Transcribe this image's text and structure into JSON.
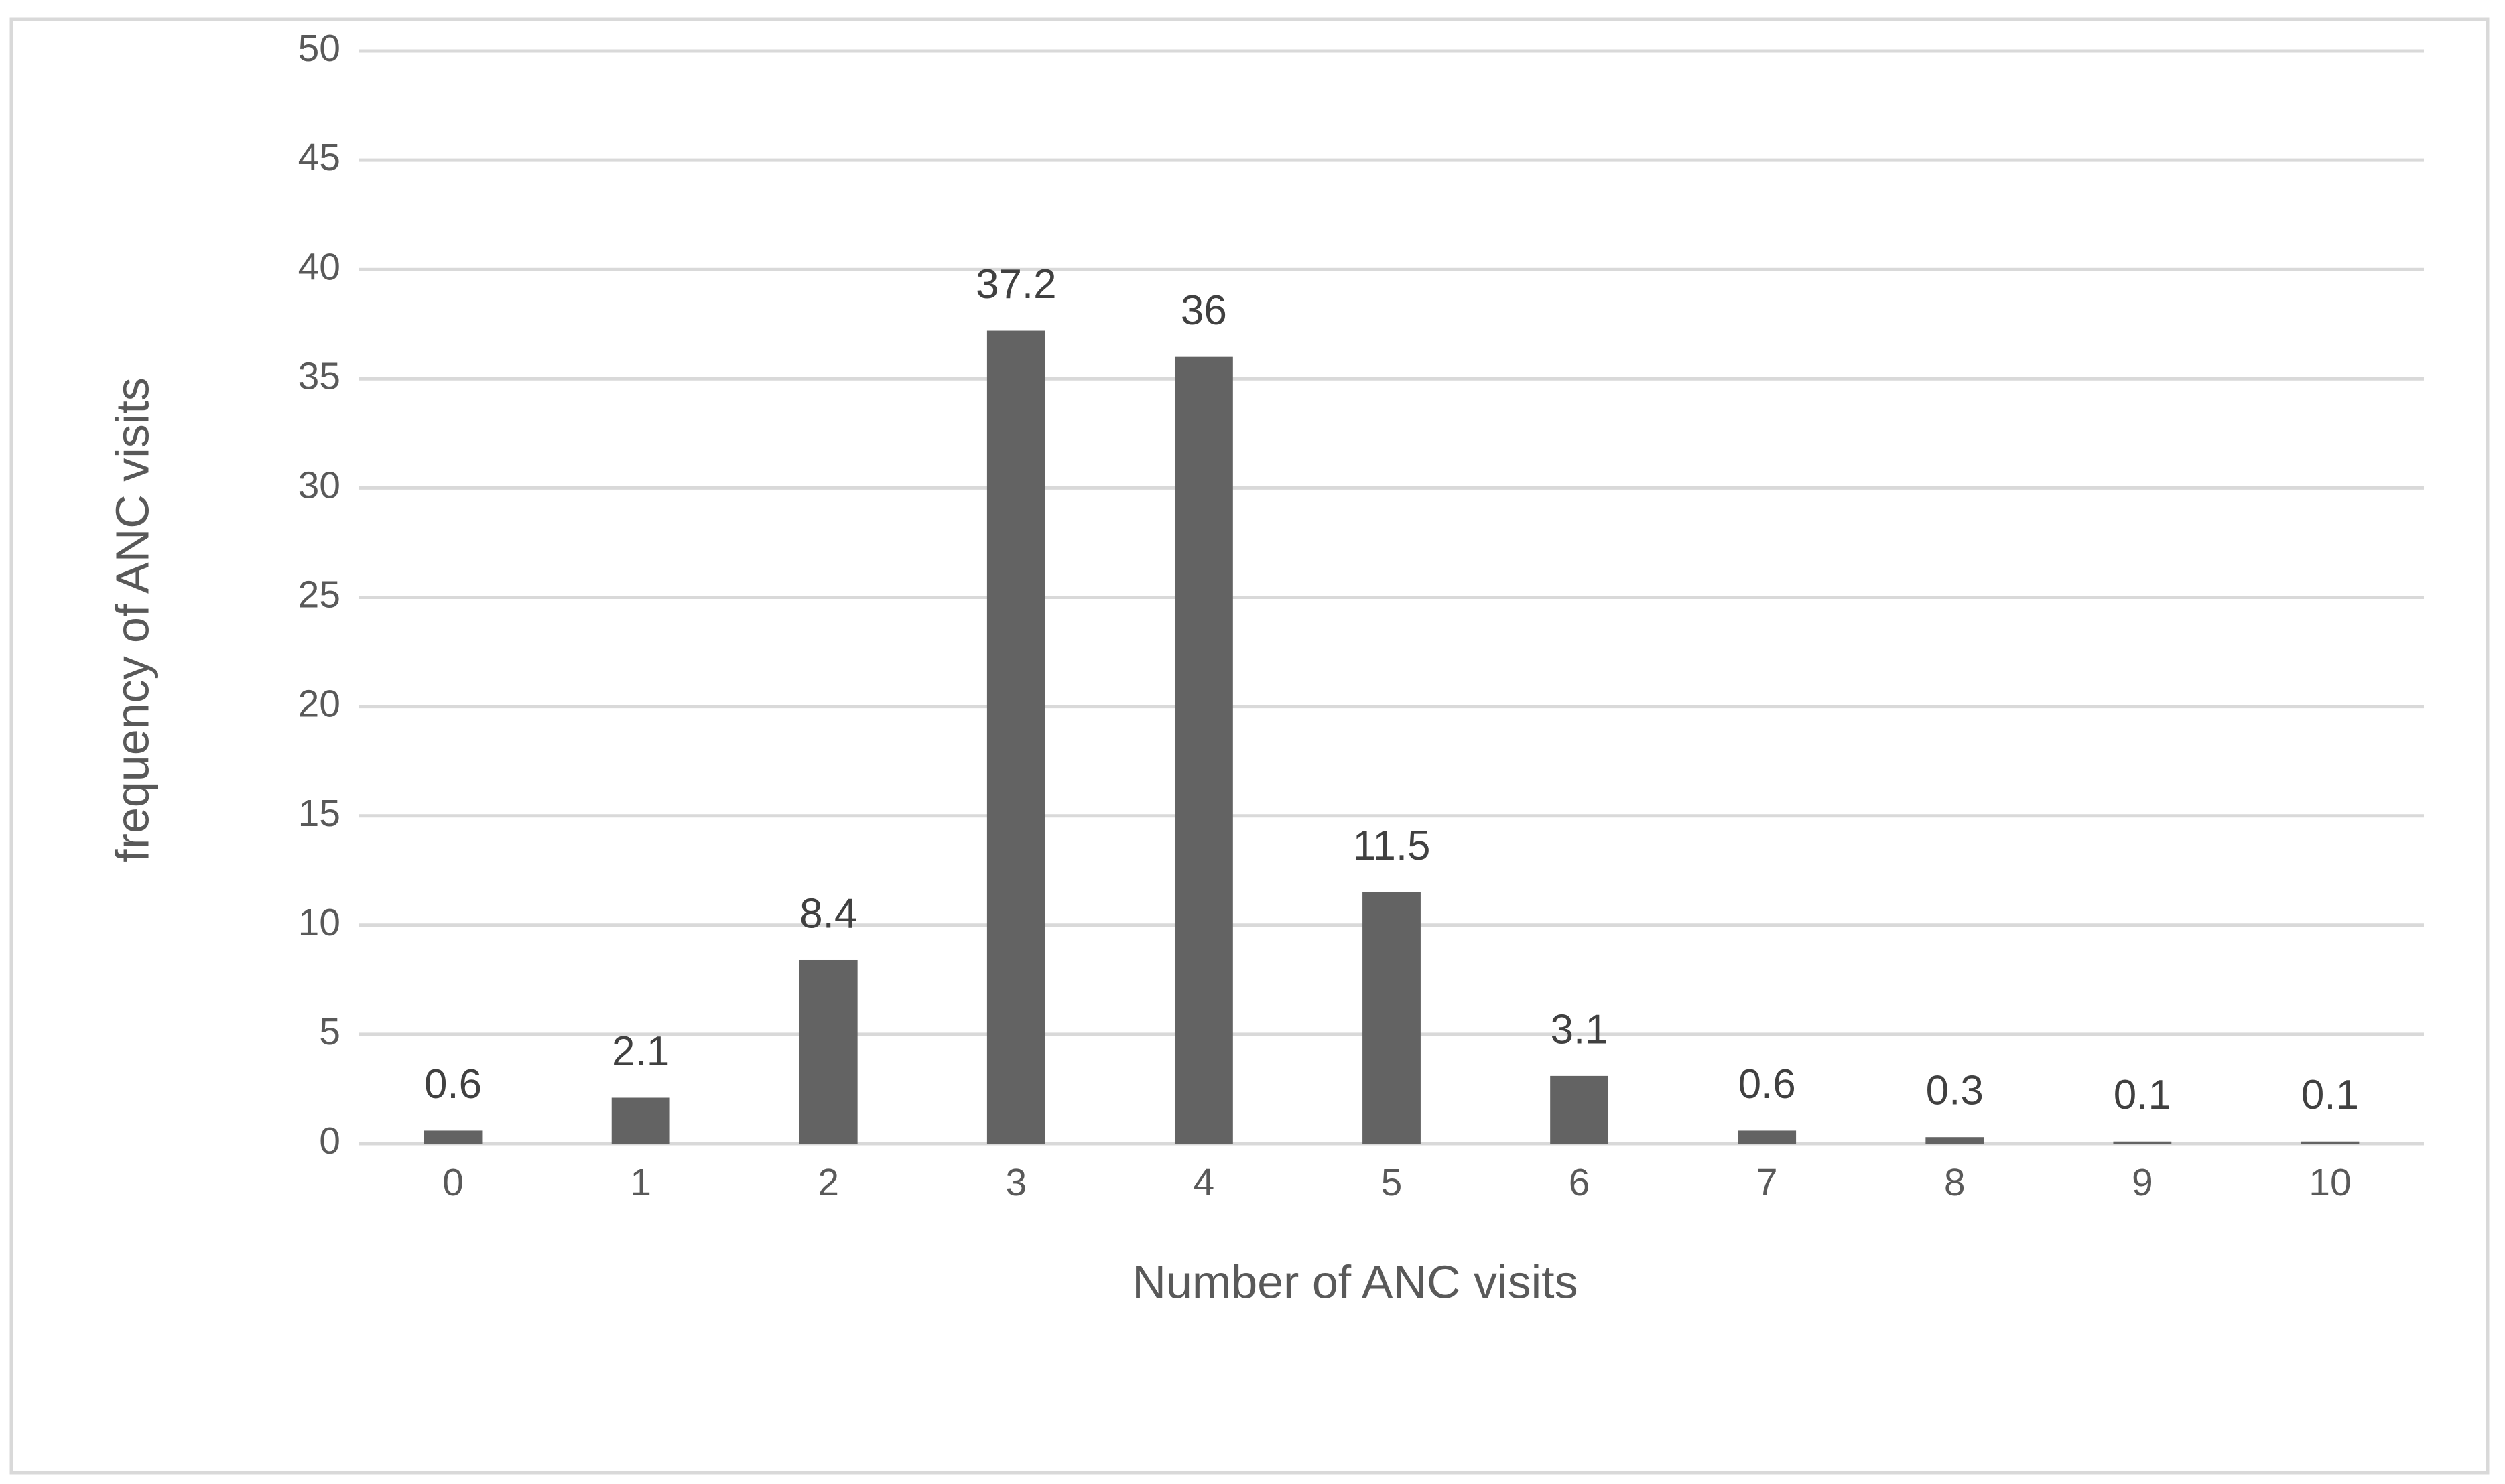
{
  "chart_data": {
    "type": "bar",
    "x_label": "Number of ANC visits",
    "y_label": "frequency of ANC visits",
    "categories": [
      "0",
      "1",
      "2",
      "3",
      "4",
      "5",
      "6",
      "7",
      "8",
      "9",
      "10"
    ],
    "values": [
      0.6,
      2.1,
      8.4,
      37.2,
      36,
      11.5,
      3.1,
      0.6,
      0.3,
      0.1,
      0.1
    ],
    "color": "#636363",
    "ylim": [
      0,
      50
    ],
    "yticks": [
      0,
      5,
      10,
      15,
      20,
      25,
      30,
      35,
      40,
      45,
      50
    ],
    "grid": true
  }
}
